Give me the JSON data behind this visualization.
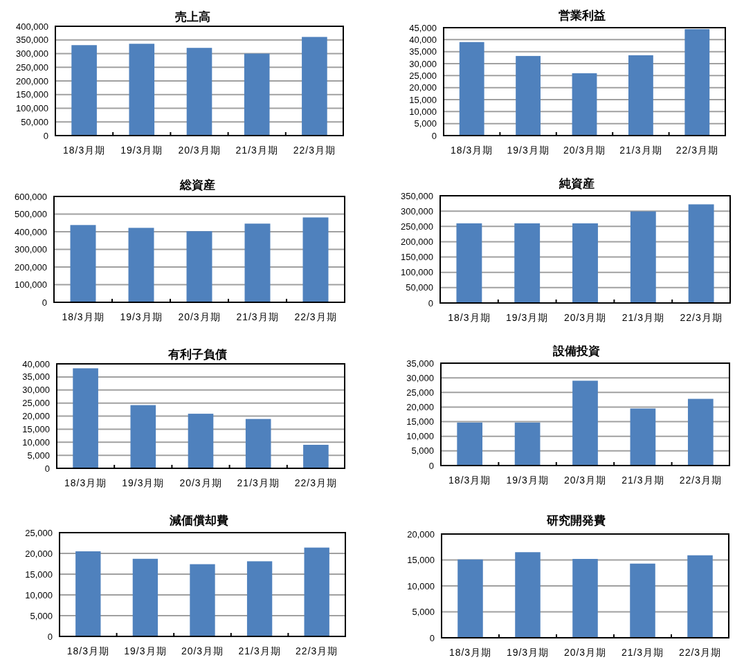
{
  "chart_data": [
    {
      "type": "bar",
      "title": "売上高",
      "categories": [
        "18/3月期",
        "19/3月期",
        "20/3月期",
        "21/3月期",
        "22/3月期"
      ],
      "values": [
        331000,
        336000,
        321000,
        300000,
        361000
      ],
      "color": "#4f81bd",
      "ylim": [
        0,
        400000
      ],
      "yticks": [
        {
          "value": 0,
          "label": "0"
        },
        {
          "value": 50000,
          "label": "50,000"
        },
        {
          "value": 100000,
          "label": "100,000"
        },
        {
          "value": 150000,
          "label": "150,000"
        },
        {
          "value": 200000,
          "label": "200,000"
        },
        {
          "value": 250000,
          "label": "250,000"
        },
        {
          "value": 300000,
          "label": "300,000"
        },
        {
          "value": 350000,
          "label": "350,000"
        },
        {
          "value": 400000,
          "label": "400,000"
        }
      ],
      "grid": "y"
    },
    {
      "type": "bar",
      "title": "営業利益",
      "categories": [
        "18/3月期",
        "19/3月期",
        "20/3月期",
        "21/3月期",
        "22/3月期"
      ],
      "values": [
        39000,
        33200,
        26000,
        33500,
        44400
      ],
      "color": "#4f81bd",
      "ylim": [
        0,
        45000
      ],
      "yticks": [
        {
          "value": 0,
          "label": "0"
        },
        {
          "value": 5000,
          "label": "5,000"
        },
        {
          "value": 10000,
          "label": "10,000"
        },
        {
          "value": 15000,
          "label": "15,000"
        },
        {
          "value": 20000,
          "label": "20,000"
        },
        {
          "value": 25000,
          "label": "25,000"
        },
        {
          "value": 30000,
          "label": "30,000"
        },
        {
          "value": 35000,
          "label": "35,000"
        },
        {
          "value": 40000,
          "label": "40,000"
        },
        {
          "value": 45000,
          "label": "45,000"
        }
      ],
      "grid": "y"
    },
    {
      "type": "bar",
      "title": "総資産",
      "categories": [
        "18/3月期",
        "19/3月期",
        "20/3月期",
        "21/3月期",
        "22/3月期"
      ],
      "values": [
        438000,
        422000,
        403000,
        446000,
        481000
      ],
      "color": "#4f81bd",
      "ylim": [
        0,
        600000
      ],
      "yticks": [
        {
          "value": 0,
          "label": "0"
        },
        {
          "value": 100000,
          "label": "100,000"
        },
        {
          "value": 200000,
          "label": "200,000"
        },
        {
          "value": 300000,
          "label": "300,000"
        },
        {
          "value": 400000,
          "label": "400,000"
        },
        {
          "value": 500000,
          "label": "500,000"
        },
        {
          "value": 600000,
          "label": "600,000"
        }
      ],
      "grid": "y"
    },
    {
      "type": "bar",
      "title": "純資産",
      "categories": [
        "18/3月期",
        "19/3月期",
        "20/3月期",
        "21/3月期",
        "22/3月期"
      ],
      "values": [
        260000,
        260000,
        260000,
        299000,
        322000
      ],
      "color": "#4f81bd",
      "ylim": [
        0,
        350000
      ],
      "yticks": [
        {
          "value": 0,
          "label": "0"
        },
        {
          "value": 50000,
          "label": "50,000"
        },
        {
          "value": 100000,
          "label": "100,000"
        },
        {
          "value": 150000,
          "label": "150,000"
        },
        {
          "value": 200000,
          "label": "200,000"
        },
        {
          "value": 250000,
          "label": "250,000"
        },
        {
          "value": 300000,
          "label": "300,000"
        },
        {
          "value": 350000,
          "label": "350,000"
        }
      ],
      "grid": "y"
    },
    {
      "type": "bar",
      "title": "有利子負債",
      "categories": [
        "18/3月期",
        "19/3月期",
        "20/3月期",
        "21/3月期",
        "22/3月期"
      ],
      "values": [
        38300,
        24200,
        20900,
        18900,
        9000
      ],
      "color": "#4f81bd",
      "ylim": [
        0,
        40000
      ],
      "yticks": [
        {
          "value": 0,
          "label": "0"
        },
        {
          "value": 5000,
          "label": "5,000"
        },
        {
          "value": 10000,
          "label": "10,000"
        },
        {
          "value": 15000,
          "label": "15,000"
        },
        {
          "value": 20000,
          "label": "20,000"
        },
        {
          "value": 25000,
          "label": "25,000"
        },
        {
          "value": 30000,
          "label": "30,000"
        },
        {
          "value": 35000,
          "label": "35,000"
        },
        {
          "value": 40000,
          "label": "40,000"
        }
      ],
      "grid": "y"
    },
    {
      "type": "bar",
      "title": "設備投資",
      "categories": [
        "18/3月期",
        "19/3月期",
        "20/3月期",
        "21/3月期",
        "22/3月期"
      ],
      "values": [
        14700,
        14700,
        29000,
        19500,
        22800
      ],
      "color": "#4f81bd",
      "ylim": [
        0,
        35000
      ],
      "yticks": [
        {
          "value": 0,
          "label": "0"
        },
        {
          "value": 5000,
          "label": "5,000"
        },
        {
          "value": 10000,
          "label": "10,000"
        },
        {
          "value": 15000,
          "label": "15,000"
        },
        {
          "value": 20000,
          "label": "20,000"
        },
        {
          "value": 25000,
          "label": "25,000"
        },
        {
          "value": 30000,
          "label": "30,000"
        },
        {
          "value": 35000,
          "label": "35,000"
        }
      ],
      "grid": "y"
    },
    {
      "type": "bar",
      "title": "減価償却費",
      "categories": [
        "18/3月期",
        "19/3月期",
        "20/3月期",
        "21/3月期",
        "22/3月期"
      ],
      "values": [
        20500,
        18700,
        17400,
        18100,
        21400
      ],
      "color": "#4f81bd",
      "ylim": [
        0,
        25000
      ],
      "yticks": [
        {
          "value": 0,
          "label": "0"
        },
        {
          "value": 5000,
          "label": "5,000"
        },
        {
          "value": 10000,
          "label": "10,000"
        },
        {
          "value": 15000,
          "label": "15,000"
        },
        {
          "value": 20000,
          "label": "20,000"
        },
        {
          "value": 25000,
          "label": "25,000"
        }
      ],
      "grid": "y"
    },
    {
      "type": "bar",
      "title": "研究開発費",
      "categories": [
        "18/3月期",
        "19/3月期",
        "20/3月期",
        "21/3月期",
        "22/3月期"
      ],
      "values": [
        15100,
        16500,
        15200,
        14300,
        15900
      ],
      "color": "#4f81bd",
      "ylim": [
        0,
        20000
      ],
      "yticks": [
        {
          "value": 0,
          "label": "0"
        },
        {
          "value": 5000,
          "label": "5,000"
        },
        {
          "value": 10000,
          "label": "10,000"
        },
        {
          "value": 15000,
          "label": "15,000"
        },
        {
          "value": 20000,
          "label": "20,000"
        }
      ],
      "grid": "y"
    }
  ]
}
